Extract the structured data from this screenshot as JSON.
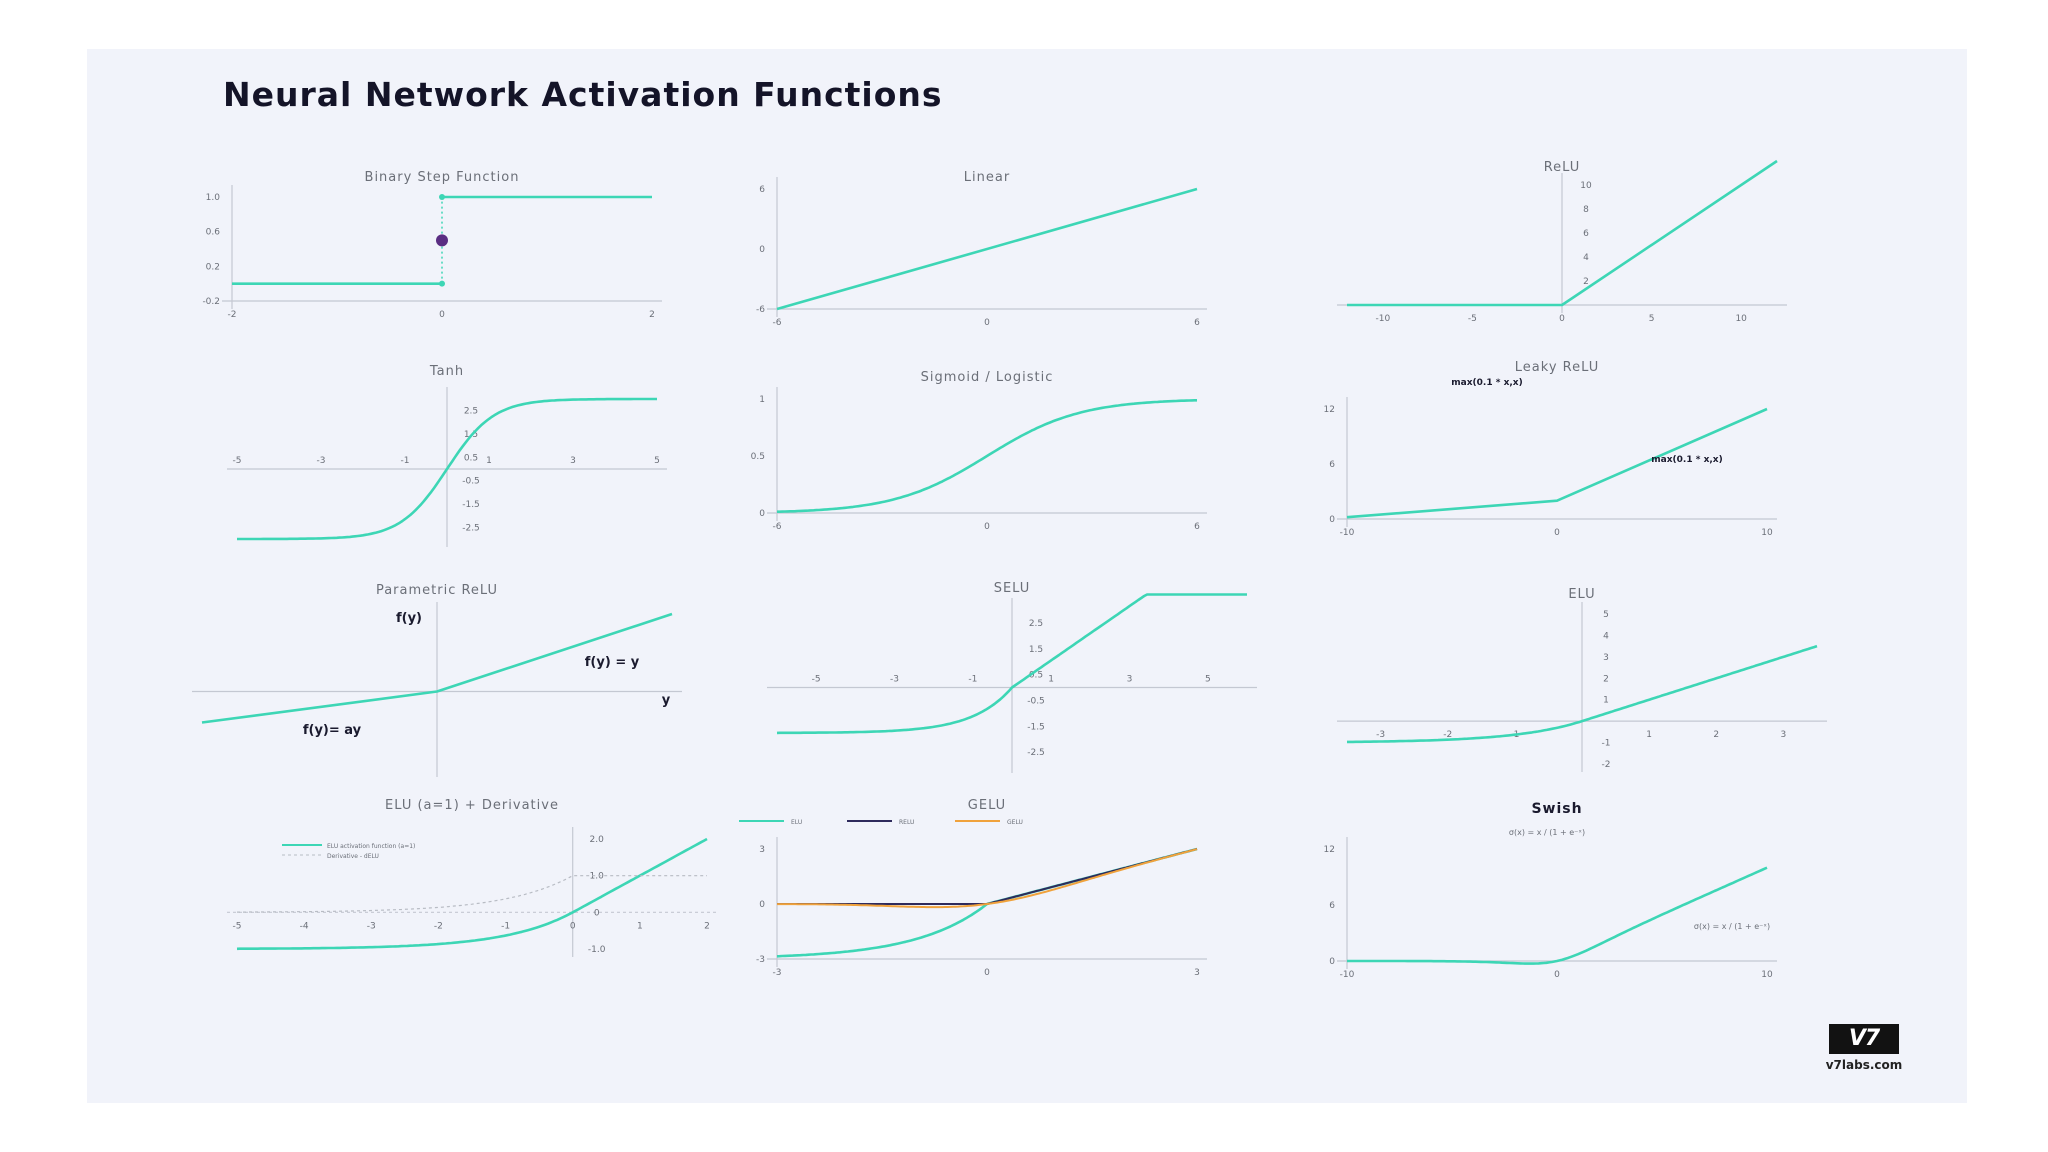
{
  "title": "Neural Network Activation Functions",
  "colors": {
    "curve": "#3dd6b5",
    "axis": "#c4c8d2",
    "text": "#6b6f78",
    "dark": "#1a1a2e",
    "dot": "#5a2d82",
    "orange": "#f0a23c",
    "navy": "#2e2a5c"
  },
  "logo": {
    "mark": "V7",
    "url": "v7labs.com"
  },
  "chart_data": [
    {
      "type": "line",
      "title": "Binary Step Function",
      "xlim": [
        -2,
        2
      ],
      "ylim": [
        -0.2,
        1.0
      ],
      "xticks": [
        "-2",
        "0",
        "2"
      ],
      "xtick_values": [
        -2,
        0,
        2
      ],
      "yticks": [
        "1.0",
        "0.6",
        "0.2",
        "-0.2"
      ],
      "ytick_values": [
        1.0,
        0.6,
        0.2,
        -0.2
      ],
      "series": [
        {
          "x": [
            -2,
            0
          ],
          "y": [
            0,
            0
          ]
        },
        {
          "x": [
            0,
            2
          ],
          "y": [
            1,
            1
          ]
        }
      ],
      "annotations_points": [
        {
          "x": 0,
          "y": 0.5
        }
      ]
    },
    {
      "type": "line",
      "title": "Linear",
      "xlim": [
        -6,
        6
      ],
      "ylim": [
        -6,
        6
      ],
      "xticks": [
        "-6",
        "0",
        "6"
      ],
      "xtick_values": [
        -6,
        0,
        6
      ],
      "yticks": [
        "6",
        "0",
        "-6"
      ],
      "ytick_values": [
        6,
        0,
        -6
      ],
      "series": [
        {
          "x": [
            -6,
            6
          ],
          "y": [
            -6,
            6
          ]
        }
      ]
    },
    {
      "type": "line",
      "title": "ReLU",
      "xlim": [
        -12,
        12
      ],
      "ylim": [
        0,
        10
      ],
      "xticks": [
        "-10",
        "-5",
        "0",
        "5",
        "10"
      ],
      "xtick_values": [
        -10,
        -5,
        0,
        5,
        10
      ],
      "yticks": [
        "10",
        "8",
        "6",
        "4",
        "2"
      ],
      "ytick_values": [
        10,
        8,
        6,
        4,
        2
      ],
      "series": [
        {
          "x": [
            -12,
            0,
            12
          ],
          "y": [
            0,
            0,
            12
          ]
        }
      ]
    },
    {
      "type": "line",
      "title": "Tanh",
      "xlim": [
        -5,
        5
      ],
      "ylim": [
        -3,
        3
      ],
      "xticks": [
        "-5",
        "-3",
        "-1",
        "1",
        "3",
        "5"
      ],
      "xtick_values": [
        -5,
        -3,
        -1,
        1,
        3,
        5
      ],
      "yticks": [
        "2.5",
        "1.5",
        "0.5",
        "-0.5",
        "-1.5",
        "-2.5"
      ],
      "ytick_values": [
        2.5,
        1.5,
        0.5,
        -0.5,
        -1.5,
        -2.5
      ],
      "series": [
        {
          "function": "tanh",
          "scale": 3
        }
      ]
    },
    {
      "type": "line",
      "title": "Sigmoid / Logistic",
      "xlim": [
        -6,
        6
      ],
      "ylim": [
        0,
        1
      ],
      "xticks": [
        "-6",
        "0",
        "6"
      ],
      "xtick_values": [
        -6,
        0,
        6
      ],
      "yticks": [
        "1",
        "0.5",
        "0"
      ],
      "ytick_values": [
        1,
        0.5,
        0
      ],
      "series": [
        {
          "function": "sigmoid"
        }
      ]
    },
    {
      "type": "line",
      "title": "Leaky ReLU",
      "xlim": [
        -10,
        10
      ],
      "ylim": [
        0,
        12
      ],
      "xticks": [
        "-10",
        "0",
        "10"
      ],
      "xtick_values": [
        -10,
        0,
        10
      ],
      "yticks": [
        "12",
        "6",
        "0"
      ],
      "ytick_values": [
        12,
        6,
        0
      ],
      "series": [
        {
          "x": [
            -10,
            0,
            10
          ],
          "y": [
            0.2,
            2,
            12
          ]
        }
      ],
      "annotations": [
        "max(0.1 * x,x)",
        "max(0.1 * x,x)"
      ]
    },
    {
      "type": "line",
      "title": "Parametric ReLU",
      "xlim": [
        -6,
        6
      ],
      "ylim": [
        -3,
        3
      ],
      "series": [
        {
          "x": [
            -6,
            0,
            6
          ],
          "y": [
            -1.2,
            0,
            3
          ]
        }
      ],
      "annotations": [
        "f(y)",
        "f(y) = y",
        "y",
        "f(y)= ay"
      ]
    },
    {
      "type": "line",
      "title": "SELU",
      "xlim": [
        -6,
        6
      ],
      "ylim": [
        -3,
        3
      ],
      "xticks": [
        "-5",
        "-3",
        "-1",
        "1",
        "3",
        "5"
      ],
      "xtick_values": [
        -5,
        -3,
        -1,
        1,
        3,
        5
      ],
      "yticks": [
        "2.5",
        "1.5",
        "0.5",
        "-0.5",
        "-1.5",
        "-2.5"
      ],
      "ytick_values": [
        2.5,
        1.5,
        0.5,
        -0.5,
        -1.5,
        -2.5
      ],
      "series": [
        {
          "function": "selu"
        }
      ]
    },
    {
      "type": "line",
      "title": "ELU",
      "xlim": [
        -3.5,
        3.5
      ],
      "ylim": [
        -2,
        5
      ],
      "xticks": [
        "-3",
        "-2",
        "-1",
        "1",
        "2",
        "3"
      ],
      "xtick_values": [
        -3,
        -2,
        -1,
        1,
        2,
        3
      ],
      "yticks": [
        "5",
        "4",
        "3",
        "2",
        "1",
        "-1",
        "-2"
      ],
      "ytick_values": [
        5,
        4,
        3,
        2,
        1,
        -1,
        -2
      ],
      "series": [
        {
          "function": "elu"
        }
      ]
    },
    {
      "type": "line",
      "title": "ELU (a=1) + Derivative",
      "xlim": [
        -5,
        2
      ],
      "ylim": [
        -1,
        2
      ],
      "xticks": [
        "-5",
        "-4",
        "-3",
        "-2",
        "-1",
        "0",
        "1",
        "2"
      ],
      "xtick_values": [
        -5,
        -4,
        -3,
        -2,
        -1,
        0,
        1,
        2
      ],
      "yticks": [
        "2.0",
        "1.0",
        "0",
        "-1.0"
      ],
      "ytick_values": [
        2,
        1,
        0,
        -1
      ],
      "legend": [
        "ELU activation function (a=1)",
        "Derivative - dELU"
      ],
      "series": [
        {
          "function": "elu"
        },
        {
          "function": "elu_derivative"
        }
      ]
    },
    {
      "type": "line",
      "title": "GELU",
      "xlim": [
        -3,
        3
      ],
      "ylim": [
        -3,
        3
      ],
      "xticks": [
        "-3",
        "0",
        "3"
      ],
      "xtick_values": [
        -3,
        0,
        3
      ],
      "yticks": [
        "3",
        "0",
        "-3"
      ],
      "ytick_values": [
        3,
        0,
        -3
      ],
      "legend": [
        "ELU",
        "RELU",
        "GELU"
      ],
      "series": [
        {
          "function": "elu_scaled"
        },
        {
          "function": "relu"
        },
        {
          "function": "gelu"
        }
      ]
    },
    {
      "type": "line",
      "title": "Swish",
      "xlim": [
        -10,
        10
      ],
      "ylim": [
        0,
        12
      ],
      "xticks": [
        "-10",
        "0",
        "10"
      ],
      "xtick_values": [
        -10,
        0,
        10
      ],
      "yticks": [
        "12",
        "6",
        "0"
      ],
      "ytick_values": [
        12,
        6,
        0
      ],
      "series": [
        {
          "function": "swish"
        }
      ],
      "annotations": [
        "σ(x) = x / (1 + e⁻ˣ)",
        "σ(x) = x / (1 + e⁻ˣ)"
      ]
    }
  ]
}
